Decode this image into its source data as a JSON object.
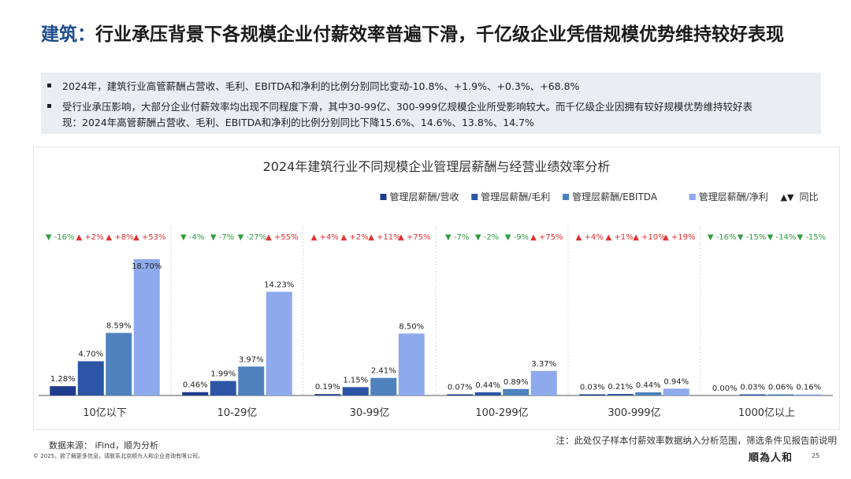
{
  "header": {
    "title_keyword": "建筑：",
    "title_rest": "行业承压背景下各规模企业付薪效率普遍下滑，千亿级企业凭借规模优势维持较好表现"
  },
  "summary": {
    "bullet1": "2024年，建筑行业高管薪酬占营收、毛利、EBITDA和净利的比例分别同比变动-10.8%、+1.9%、+0.3%、+68.8%",
    "bullet2_line1": "受行业承压影响，大部分企业付薪效率均出现不同程度下滑，其中30-99亿、300-999亿规模企业所受影响较大。而千亿级企业因拥有较好规模优势维持较好表",
    "bullet2_line2": "现：2024年高管薪酬占营收、毛利、EBITDA和净利的比例分别同比下降15.6%、14.6%、13.8%、14.7%"
  },
  "chart_data": {
    "type": "bar",
    "title": "2024年建筑行业不同规模企业管理层薪酬与经营业绩效率分析",
    "categories": [
      "10亿以下",
      "10-29亿",
      "30-99亿",
      "100-299亿",
      "300-999亿",
      "1000亿以上"
    ],
    "series": [
      {
        "name": "管理层薪酬/营收",
        "color": "#1f3b8c",
        "values": [
          1.28,
          0.46,
          0.19,
          0.07,
          0.03,
          0.0
        ],
        "labels": [
          "1.28%",
          "0.46%",
          "0.19%",
          "0.07%",
          "0.03%",
          "0.00%"
        ]
      },
      {
        "name": "管理层薪酬/毛利",
        "color": "#2c55a6",
        "values": [
          4.7,
          1.99,
          1.15,
          0.44,
          0.21,
          0.03
        ],
        "labels": [
          "4.70%",
          "1.99%",
          "1.15%",
          "0.44%",
          "0.21%",
          "0.03%"
        ]
      },
      {
        "name": "管理层薪酬/EBITDA",
        "color": "#4f81bd",
        "values": [
          8.59,
          3.97,
          2.41,
          0.89,
          0.44,
          0.06
        ],
        "labels": [
          "8.59%",
          "3.97%",
          "2.41%",
          "0.89%",
          "0.44%",
          "0.06%"
        ]
      },
      {
        "name": "管理层薪酬/净利",
        "color": "#8ea9ec",
        "values": [
          18.7,
          14.23,
          8.5,
          3.37,
          0.94,
          0.16
        ],
        "labels": [
          "18.70%",
          "14.23%",
          "8.50%",
          "3.37%",
          "0.94%",
          "0.16%"
        ]
      }
    ],
    "yoy": [
      [
        {
          "dir": "down",
          "text": "-16%"
        },
        {
          "dir": "up",
          "text": "+2%"
        },
        {
          "dir": "up",
          "text": "+8%"
        },
        {
          "dir": "up",
          "text": "+53%"
        }
      ],
      [
        {
          "dir": "down",
          "text": "-4%"
        },
        {
          "dir": "down",
          "text": "-7%"
        },
        {
          "dir": "down",
          "text": "-27%"
        },
        {
          "dir": "up",
          "text": "+55%"
        }
      ],
      [
        {
          "dir": "up",
          "text": "+4%"
        },
        {
          "dir": "up",
          "text": "+2%"
        },
        {
          "dir": "up",
          "text": "+11%"
        },
        {
          "dir": "up",
          "text": "+75%"
        }
      ],
      [
        {
          "dir": "down",
          "text": "-7%"
        },
        {
          "dir": "down",
          "text": "-2%"
        },
        {
          "dir": "down",
          "text": "-9%"
        },
        {
          "dir": "up",
          "text": "+75%"
        }
      ],
      [
        {
          "dir": "up",
          "text": "+4%"
        },
        {
          "dir": "up",
          "text": "+1%"
        },
        {
          "dir": "up",
          "text": "+10%"
        },
        {
          "dir": "up",
          "text": "+19%"
        }
      ],
      [
        {
          "dir": "down",
          "text": "-16%"
        },
        {
          "dir": "down",
          "text": "-15%"
        },
        {
          "dir": "down",
          "text": "-14%"
        },
        {
          "dir": "down",
          "text": "-15%"
        }
      ]
    ],
    "yoy_legend": "同比",
    "up_color": "#e03030",
    "down_color": "#2e9e3e",
    "ylim": [
      0,
      20
    ],
    "legend_position": "top-right",
    "grid": false
  },
  "footer": {
    "source": "数据来源： iFind，顺为分析",
    "note": "注：此处仅子样本付薪效率数据纳入分析范围，筛选条件见报告前说明",
    "copyright": "© 2025。欲了解更多信息，请联系北京顺为人和企业咨询有限公司。",
    "logo_text": "順為人和",
    "page_number": "25"
  }
}
